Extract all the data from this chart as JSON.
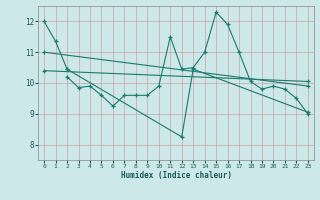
{
  "title": "",
  "xlabel": "Humidex (Indice chaleur)",
  "ylabel": "",
  "xlim": [
    -0.5,
    23.5
  ],
  "ylim": [
    7.5,
    12.5
  ],
  "yticks": [
    8,
    9,
    10,
    11,
    12
  ],
  "xticks": [
    0,
    1,
    2,
    3,
    4,
    5,
    6,
    7,
    8,
    9,
    10,
    11,
    12,
    13,
    14,
    15,
    16,
    17,
    18,
    19,
    20,
    21,
    22,
    23
  ],
  "bg_color": "#cde8e8",
  "grid_color": "#cc9999",
  "line_color": "#1a7a6e",
  "series": [
    {
      "x": [
        0,
        1,
        2
      ],
      "y": [
        12.0,
        11.35,
        10.45
      ]
    },
    {
      "x": [
        2,
        3,
        4,
        5,
        6,
        7,
        8,
        9,
        10,
        11,
        12,
        13,
        14,
        15,
        16,
        17,
        18,
        19,
        20,
        21,
        22,
        23
      ],
      "y": [
        10.2,
        9.85,
        9.9,
        9.6,
        9.25,
        9.6,
        9.6,
        9.6,
        9.9,
        11.5,
        10.45,
        10.5,
        11.0,
        12.3,
        11.9,
        11.0,
        10.05,
        9.8,
        9.9,
        9.8,
        9.5,
        9.0
      ]
    },
    {
      "x": [
        2,
        12,
        13,
        23
      ],
      "y": [
        10.45,
        8.25,
        10.45,
        9.05
      ]
    },
    {
      "x": [
        0,
        23
      ],
      "y": [
        11.0,
        9.9
      ]
    },
    {
      "x": [
        0,
        23
      ],
      "y": [
        10.4,
        10.05
      ]
    }
  ]
}
